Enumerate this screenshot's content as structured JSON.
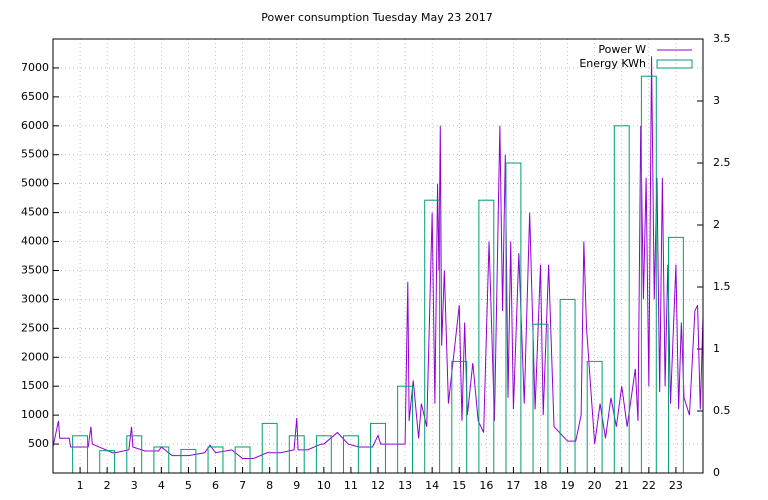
{
  "chart_data": {
    "type": "line",
    "title": "Power consumption Tuesday May 23 2017",
    "xlim": [
      0,
      24
    ],
    "xticks": [
      1,
      2,
      3,
      4,
      5,
      6,
      7,
      8,
      9,
      10,
      11,
      12,
      13,
      14,
      15,
      16,
      17,
      18,
      19,
      20,
      21,
      22,
      23
    ],
    "ylim": [
      0,
      7500
    ],
    "yticks": [
      500,
      1000,
      1500,
      2000,
      2500,
      3000,
      3500,
      4000,
      4500,
      5000,
      5500,
      6000,
      6500,
      7000
    ],
    "y2lim": [
      0,
      3.5
    ],
    "y2ticks": [
      0,
      0.5,
      1,
      1.5,
      2,
      2.5,
      3,
      3.5
    ],
    "grid": true,
    "legend": "top-right",
    "series": [
      {
        "name": "Power W",
        "color": "#9400d3",
        "style": "line",
        "x": [
          0,
          0.2,
          0.25,
          0.3,
          0.6,
          0.65,
          1.3,
          1.4,
          1.45,
          2.2,
          2.3,
          2.8,
          2.9,
          2.95,
          3.4,
          3.9,
          4.0,
          4.4,
          5.0,
          5.6,
          5.8,
          6.0,
          6.6,
          7.0,
          7.4,
          7.9,
          8.0,
          8.4,
          8.9,
          9.0,
          9.05,
          9.4,
          9.9,
          10.0,
          10.5,
          10.9,
          11.3,
          11.8,
          12.0,
          12.1,
          12.6,
          12.9,
          13.0,
          13.1,
          13.15,
          13.3,
          13.5,
          13.6,
          13.8,
          14.0,
          14.1,
          14.2,
          14.25,
          14.3,
          14.35,
          14.45,
          14.6,
          15.0,
          15.1,
          15.2,
          15.3,
          15.5,
          15.7,
          15.9,
          16.1,
          16.3,
          16.5,
          16.6,
          16.7,
          16.8,
          16.9,
          17.0,
          17.2,
          17.4,
          17.6,
          17.8,
          18.0,
          18.1,
          18.3,
          18.5,
          18.7,
          19.0,
          19.3,
          19.5,
          19.6,
          19.7,
          20.0,
          20.2,
          20.4,
          20.6,
          20.8,
          21.0,
          21.2,
          21.5,
          21.6,
          21.7,
          21.8,
          21.9,
          22.0,
          22.1,
          22.2,
          22.3,
          22.4,
          22.5,
          22.6,
          22.7,
          22.8,
          23.0,
          23.1,
          23.2,
          23.3,
          23.5,
          23.7,
          23.8,
          23.9,
          24.0
        ],
        "values": [
          450,
          900,
          600,
          600,
          600,
          450,
          450,
          800,
          500,
          350,
          350,
          400,
          800,
          450,
          380,
          380,
          450,
          300,
          300,
          350,
          480,
          350,
          400,
          250,
          250,
          350,
          350,
          350,
          400,
          950,
          400,
          400,
          500,
          500,
          700,
          500,
          450,
          450,
          650,
          500,
          500,
          500,
          500,
          3300,
          900,
          1600,
          600,
          1200,
          800,
          4500,
          1200,
          5000,
          3500,
          6000,
          2200,
          3500,
          1200,
          2900,
          900,
          2600,
          1000,
          1900,
          900,
          700,
          4000,
          900,
          6000,
          2800,
          5500,
          1300,
          4000,
          1100,
          3800,
          1200,
          4500,
          1100,
          3600,
          1000,
          3600,
          800,
          700,
          550,
          550,
          1000,
          4000,
          2500,
          500,
          1200,
          600,
          1300,
          800,
          1500,
          800,
          1800,
          900,
          6000,
          3000,
          5100,
          1500,
          7200,
          3000,
          5100,
          1400,
          5100,
          1500,
          3600,
          1200,
          3600,
          1100,
          2600,
          1300,
          1000,
          2800,
          2900,
          1100,
          2700
        ]
      },
      {
        "name": "Energy KWh",
        "color": "#009e73",
        "style": "boxes",
        "axis": "y2",
        "x": [
          1,
          2,
          3,
          4,
          5,
          6,
          7,
          8,
          9,
          10,
          11,
          12,
          13,
          14,
          15,
          16,
          17,
          18,
          19,
          20,
          21,
          22,
          23
        ],
        "values": [
          0.3,
          0.18,
          0.3,
          0.21,
          0.19,
          0.21,
          0.21,
          0.4,
          0.3,
          0.3,
          0.3,
          0.4,
          0.7,
          2.2,
          0.9,
          2.2,
          2.5,
          1.2,
          1.4,
          0.9,
          2.8,
          3.2,
          1.9
        ]
      }
    ]
  }
}
